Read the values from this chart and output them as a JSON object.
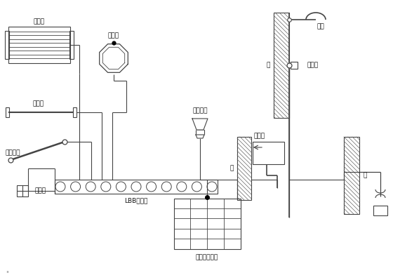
{
  "bg_color": "#ffffff",
  "lc": "#444444",
  "tc": "#111111",
  "fs": 6.5,
  "labels": {
    "bath_curtain_rack": "浴帘枲",
    "towel_rack": "毛巾枲",
    "curtain_rod": "浴帘杆",
    "metal_handrail": "金属扶手",
    "hot_water_pipe": "热水管",
    "LBB_board": "LBB端子板",
    "metal_floor_drain": "金属地漏",
    "wash_basin": "洗脸盆",
    "wall": "墙",
    "shower": "淋浴",
    "water_supply_pipe": "给水管",
    "building_mesh": "建筑物钓筋网"
  }
}
